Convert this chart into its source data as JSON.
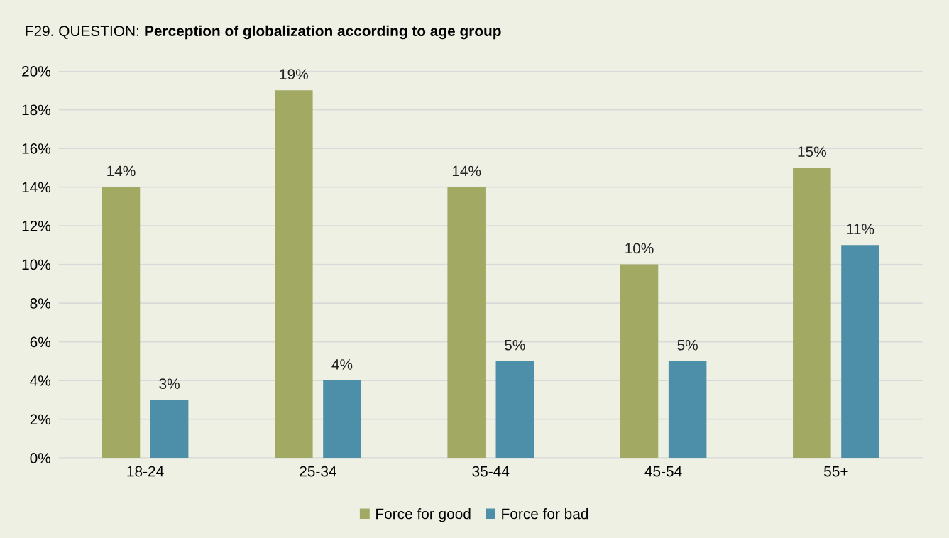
{
  "chart_data": {
    "type": "bar",
    "title": "Perception of globalization according to age group",
    "annotations": [
      "F29. QUESTION:"
    ],
    "categories": [
      "18-24",
      "25-34",
      "35-44",
      "45-54",
      "55+"
    ],
    "series": [
      {
        "name": "Force for good",
        "color": "#a2a962",
        "values": [
          14,
          19,
          14,
          10,
          15
        ],
        "value_labels": [
          "14%",
          "19%",
          "14%",
          "10%",
          "15%"
        ]
      },
      {
        "name": "Force for bad",
        "color": "#4d8fa8",
        "values": [
          3,
          4,
          5,
          5,
          11
        ],
        "value_labels": [
          "3%",
          "4%",
          "5%",
          "5%",
          "11%"
        ]
      }
    ],
    "ylim": [
      0,
      20
    ],
    "yticks": [
      {
        "value": 0,
        "label": "0%"
      },
      {
        "value": 2,
        "label": "2%"
      },
      {
        "value": 4,
        "label": "4%"
      },
      {
        "value": 6,
        "label": "6%"
      },
      {
        "value": 8,
        "label": "8%"
      },
      {
        "value": 10,
        "label": "10%"
      },
      {
        "value": 12,
        "label": "12%"
      },
      {
        "value": 14,
        "label": "14%"
      },
      {
        "value": 16,
        "label": "16%"
      },
      {
        "value": 18,
        "label": "18%"
      },
      {
        "value": 20,
        "label": "20%"
      }
    ],
    "grid": "y",
    "legend": "bottom"
  }
}
